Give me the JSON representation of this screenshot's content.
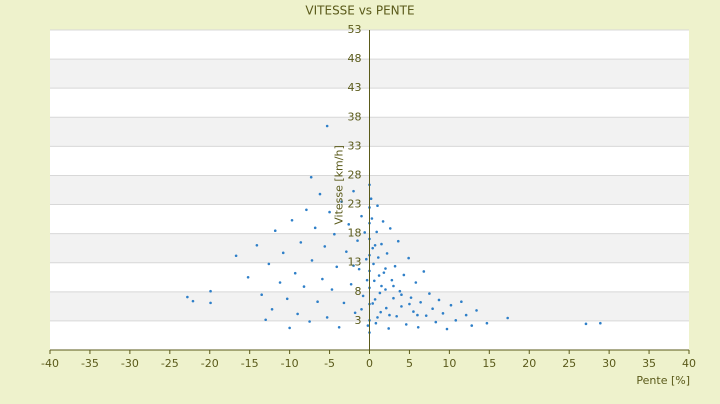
{
  "chart_data": {
    "type": "scatter",
    "title": "VITESSE vs PENTE",
    "x_label": "Pente [%]",
    "y_label": "Vitesse [km/h]",
    "xlim": [
      -40,
      40
    ],
    "xticks": [
      -40,
      -35,
      -30,
      -25,
      -20,
      -15,
      -10,
      -5,
      0,
      5,
      10,
      15,
      20,
      25,
      30,
      35,
      40
    ],
    "ylim": [
      -2,
      53
    ],
    "yticks": [
      53,
      48,
      43,
      38,
      33,
      28,
      23,
      18,
      13,
      8,
      3
    ],
    "grid": true,
    "banded": true,
    "series": [
      {
        "name": "Vitesse",
        "color": "#2e7fc8",
        "x": [
          -5.3,
          -7.3,
          -22.8,
          -22.1,
          -19.9,
          -19.9,
          -16.7,
          27.1,
          28.9,
          17.3,
          14.7,
          -15.2,
          -14.1,
          -13.5,
          -13,
          -12.6,
          -12.2,
          -11.8,
          -11.2,
          -10.8,
          -10.3,
          -10,
          -9.7,
          -9.3,
          -9,
          -8.6,
          -8.2,
          -7.9,
          -7.5,
          -7.2,
          -6.8,
          -6.5,
          -6.2,
          -5.9,
          -5.6,
          -5.3,
          -5,
          -4.7,
          -4.4,
          -4.1,
          -3.8,
          -3.5,
          -3.2,
          -2.9,
          -2.6,
          -2.3,
          -2,
          -1.8,
          -1.5,
          -1.3,
          -1,
          -0.8,
          -0.6,
          -0.4,
          -0.2,
          0,
          0,
          0,
          0,
          0,
          0,
          0,
          0,
          0,
          0,
          0.2,
          0.3,
          0.4,
          0.5,
          0.6,
          0.7,
          0.8,
          0.9,
          1,
          1.1,
          1.2,
          1.3,
          1.4,
          1.5,
          1.7,
          1.8,
          2,
          2.1,
          2.2,
          2.4,
          2.6,
          2.8,
          3,
          3.2,
          3.4,
          3.6,
          3.8,
          4,
          4.3,
          4.6,
          4.9,
          5.2,
          5.5,
          5.8,
          6.1,
          6.4,
          6.8,
          7.1,
          7.5,
          7.9,
          8.3,
          8.7,
          9.2,
          9.7,
          10.2,
          10.8,
          11.5,
          12.1,
          12.8,
          13.4,
          1.5,
          0.4,
          -0.3,
          2,
          0.7,
          1,
          3,
          -1,
          -2,
          4,
          5,
          6,
          2.5
        ],
        "values": [
          36.5,
          27.7,
          7.1,
          6.4,
          8.1,
          6.1,
          14.2,
          2.5,
          2.6,
          3.5,
          2.6,
          10.5,
          16,
          7.5,
          3.2,
          12.8,
          5,
          18.5,
          9.6,
          14.7,
          6.8,
          1.8,
          20.3,
          11.2,
          4.2,
          16.5,
          8.9,
          22.1,
          2.9,
          13.4,
          19,
          6.3,
          24.8,
          10.2,
          15.8,
          3.6,
          21.7,
          8.4,
          17.9,
          12.3,
          1.9,
          23.5,
          6.1,
          14.9,
          19.6,
          9.3,
          25.3,
          4.4,
          16.8,
          11.9,
          21,
          7.3,
          18.2,
          13.6,
          2.2,
          26.4,
          22.5,
          19.8,
          17.1,
          14.3,
          11.6,
          8.7,
          5.9,
          3.1,
          1,
          24,
          20.6,
          15.5,
          12.8,
          9.9,
          6.7,
          2.6,
          18.3,
          22.8,
          13.9,
          10.8,
          7.8,
          4.5,
          16.2,
          20.1,
          11.3,
          8.4,
          5.2,
          14.6,
          1.7,
          18.9,
          10,
          6.9,
          12.4,
          3.8,
          16.7,
          8.1,
          5.5,
          10.9,
          2.4,
          13.8,
          7,
          4.6,
          9.6,
          1.9,
          6.2,
          11.5,
          3.9,
          7.7,
          5.1,
          2.8,
          6.6,
          4.3,
          1.6,
          5.7,
          3.1,
          6.3,
          4,
          2.2,
          4.8,
          9,
          6,
          10,
          12,
          16,
          3.6,
          9,
          5,
          12.5,
          7.5,
          5.9,
          4,
          4
        ]
      }
    ]
  }
}
